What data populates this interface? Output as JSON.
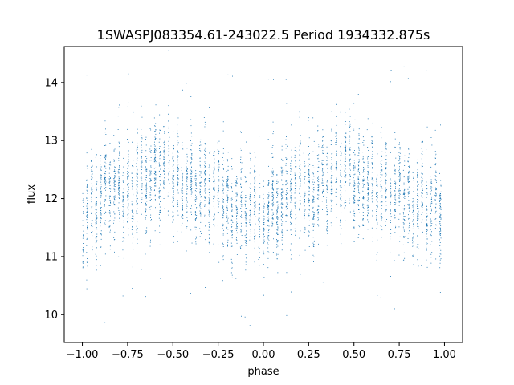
{
  "chart_data": {
    "type": "scatter",
    "title": "1SWASPJ083354.61-243022.5 Period 1934332.875s",
    "xlabel": "phase",
    "ylabel": "flux",
    "xlim": [
      -1.1,
      1.1
    ],
    "ylim": [
      9.52,
      14.62
    ],
    "xticks": [
      -1.0,
      -0.75,
      -0.5,
      -0.25,
      0.0,
      0.25,
      0.5,
      0.75,
      1.0
    ],
    "xtick_labels": [
      "−1.00",
      "−0.75",
      "−0.50",
      "−0.25",
      "0.00",
      "0.25",
      "0.50",
      "0.75",
      "1.00"
    ],
    "yticks": [
      10,
      11,
      12,
      13,
      14
    ],
    "ytick_labels": [
      "10",
      "11",
      "12",
      "13",
      "14"
    ],
    "grid": false,
    "point_color": "#1f77b4",
    "series": [
      {
        "phase_range": [
          -1.0,
          1.0
        ],
        "period_in_phase": 1.0,
        "n_points": 5000,
        "mean_flux_profile": [
          {
            "phase": 0.0,
            "flux": 11.8
          },
          {
            "phase": 0.05,
            "flux": 11.85
          },
          {
            "phase": 0.1,
            "flux": 12.05
          },
          {
            "phase": 0.15,
            "flux": 12.2
          },
          {
            "phase": 0.2,
            "flux": 12.1
          },
          {
            "phase": 0.25,
            "flux": 12.1
          },
          {
            "phase": 0.3,
            "flux": 12.25
          },
          {
            "phase": 0.35,
            "flux": 12.35
          },
          {
            "phase": 0.4,
            "flux": 12.4
          },
          {
            "phase": 0.45,
            "flux": 12.55
          },
          {
            "phase": 0.5,
            "flux": 12.3
          },
          {
            "phase": 0.55,
            "flux": 12.4
          },
          {
            "phase": 0.6,
            "flux": 12.2
          },
          {
            "phase": 0.65,
            "flux": 12.2
          },
          {
            "phase": 0.7,
            "flux": 12.1
          },
          {
            "phase": 0.75,
            "flux": 12.0
          },
          {
            "phase": 0.8,
            "flux": 11.95
          },
          {
            "phase": 0.85,
            "flux": 11.95
          },
          {
            "phase": 0.9,
            "flux": 11.9
          },
          {
            "phase": 0.95,
            "flux": 11.8
          },
          {
            "phase": 1.0,
            "flux": 11.8
          }
        ],
        "scatter_sigma": 0.42,
        "outlier_range": [
          9.8,
          14.6
        ]
      }
    ]
  }
}
